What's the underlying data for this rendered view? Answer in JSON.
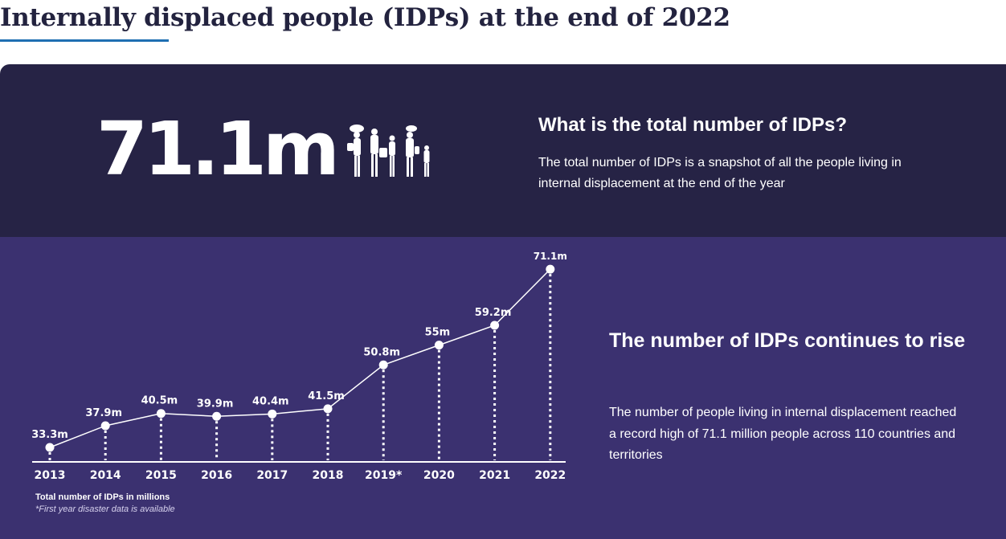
{
  "header": {
    "title": "Internally displaced people (IDPs) at the end of 2022"
  },
  "summary": {
    "big_number": "71.1m",
    "icon": "people-icon",
    "heading": "What is the total number of IDPs?",
    "description": "The total number of IDPs is a snapshot of all the people living in internal displacement at the end of the year"
  },
  "trend": {
    "heading": "The number of IDPs continues to rise",
    "description": "The number of people living in internal displacement reached a record high of 71.1 million people across 110 countries and territories",
    "note": "Total number of IDPs in millions",
    "footnote": "*First year disaster data is available"
  },
  "colors": {
    "top_panel": "#262345",
    "bottom_panel": "#3b3170",
    "title": "#23233f",
    "underline": "#1f6fb2"
  },
  "chart_data": {
    "type": "line",
    "categories": [
      "2013",
      "2014",
      "2015",
      "2016",
      "2017",
      "2018",
      "2019*",
      "2020",
      "2021",
      "2022"
    ],
    "values": [
      33.3,
      37.9,
      40.5,
      39.9,
      40.4,
      41.5,
      50.8,
      55,
      59.2,
      71.1
    ],
    "labels": [
      "33.3m",
      "37.9m",
      "40.5m",
      "39.9m",
      "40.4m",
      "41.5m",
      "50.8m",
      "55m",
      "59.2m",
      "71.1m"
    ],
    "title": "",
    "xlabel": "",
    "ylabel": "",
    "grid": false,
    "legend": "none"
  }
}
